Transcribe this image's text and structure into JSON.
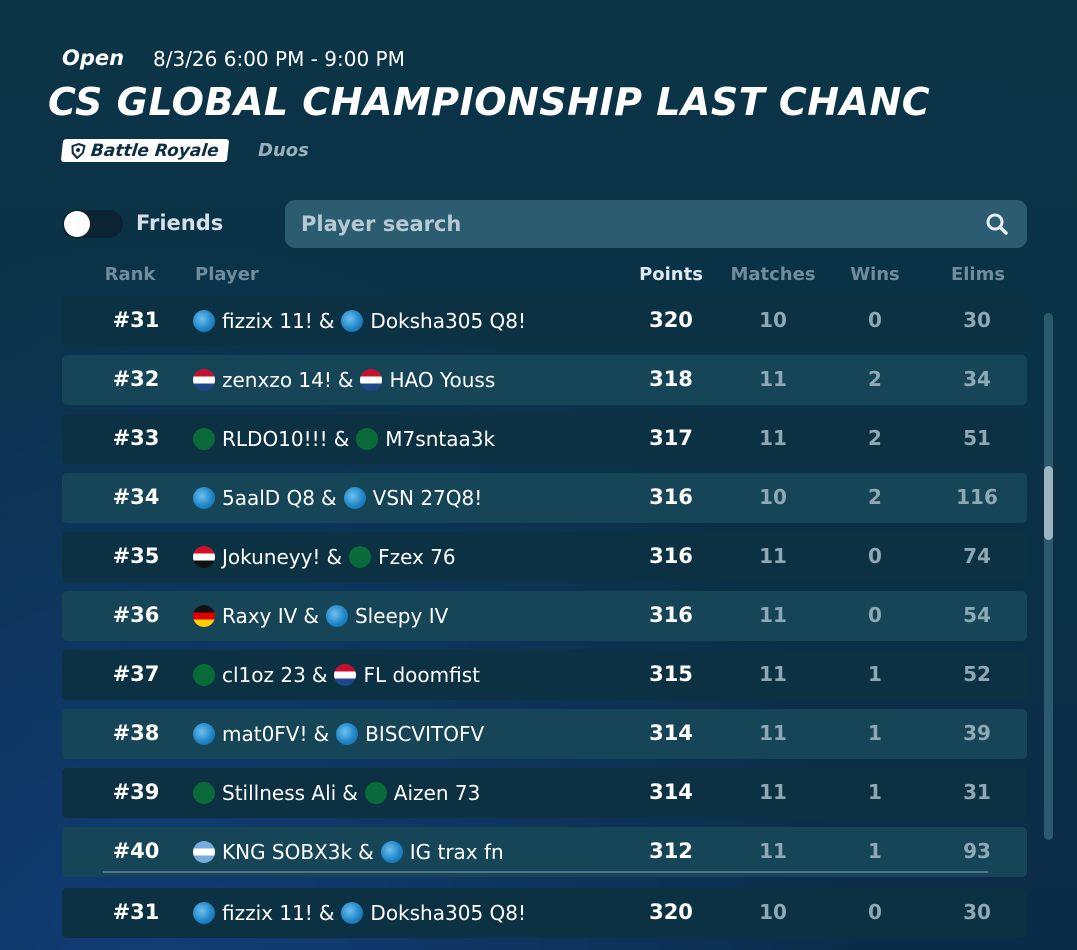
{
  "header": {
    "status": "Open",
    "schedule": "8/3/26 6:00 PM - 9:00 PM",
    "title": "CS GLOBAL CHAMPIONSHIP LAST CHANC",
    "mode": "Battle Royale",
    "team_size": "Duos"
  },
  "filters": {
    "toggle_label": "Friends",
    "search_placeholder": "Player search"
  },
  "table": {
    "columns": [
      "Rank",
      "Player",
      "Points",
      "Matches",
      "Wins",
      "Elims"
    ],
    "separator": "&",
    "rows": [
      [
        "#31",
        "fizzix 11!",
        "Doksha305 Q8!",
        320,
        10,
        0,
        30
      ],
      [
        "#32",
        "zenxzo 14!",
        "HAO Youss",
        318,
        11,
        2,
        34
      ],
      [
        "#33",
        "RLDO10!!!",
        "M7sntaa3k",
        317,
        11,
        2,
        51
      ],
      [
        "#34",
        "5aalD Q8",
        "VSN 27Q8!",
        316,
        10,
        2,
        116
      ],
      [
        "#35",
        "Jokuneyy!",
        "Fzex 76",
        316,
        11,
        0,
        74
      ],
      [
        "#36",
        "Raxy IV",
        "Sleepy IV",
        316,
        11,
        0,
        54
      ],
      [
        "#37",
        "cl1oz 23",
        "FL doomfist",
        315,
        11,
        1,
        52
      ],
      [
        "#38",
        "mat0FV!",
        "BISCVITOFV",
        314,
        11,
        1,
        39
      ],
      [
        "#39",
        "Stillness Ali",
        "Aizen 73",
        314,
        11,
        1,
        31
      ],
      [
        "#40",
        "KNG SOBX3k",
        "IG trax fn",
        312,
        11,
        1,
        93
      ]
    ],
    "own_row": [
      "#31",
      "fizzix 11!",
      "Doksha305 Q8!",
      320,
      10,
      0,
      30
    ]
  }
}
